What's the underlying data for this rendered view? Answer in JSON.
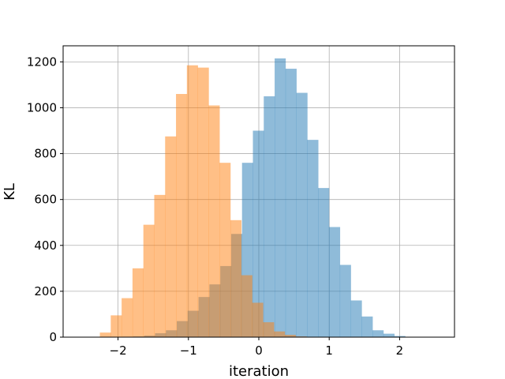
{
  "chart_data": {
    "type": "bar",
    "subtype": "overlapping-histogram",
    "xlabel": "iteration",
    "ylabel": "KL",
    "xlim": [
      -2.78,
      2.78
    ],
    "ylim": [
      0,
      1270
    ],
    "xticks": [
      -2,
      -1,
      0,
      1,
      2
    ],
    "xtick_labels": [
      "−2",
      "−1",
      "0",
      "1",
      "2"
    ],
    "yticks": [
      0,
      200,
      400,
      600,
      800,
      1000,
      1200
    ],
    "grid": true,
    "series": [
      {
        "color": "#1f77b4",
        "opacity": 0.5,
        "bin_start": -1.938,
        "bin_width": 0.1545,
        "counts": [
          2,
          3,
          7,
          17,
          30,
          70,
          115,
          175,
          230,
          310,
          450,
          760,
          900,
          1050,
          1215,
          1170,
          1065,
          860,
          650,
          480,
          315,
          160,
          90,
          30,
          15,
          5
        ]
      },
      {
        "color": "#ff7f0e",
        "opacity": 0.5,
        "bin_start": -2.258,
        "bin_width": 0.1545,
        "counts": [
          20,
          95,
          170,
          300,
          490,
          620,
          875,
          1060,
          1185,
          1175,
          1010,
          760,
          510,
          270,
          150,
          65,
          25,
          10,
          3
        ]
      }
    ]
  }
}
